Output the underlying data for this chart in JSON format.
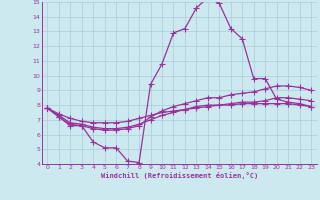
{
  "xlabel": "Windchill (Refroidissement éolien,°C)",
  "xlim": [
    -0.5,
    23.5
  ],
  "ylim": [
    4,
    15
  ],
  "yticks": [
    4,
    5,
    6,
    7,
    8,
    9,
    10,
    11,
    12,
    13,
    14,
    15
  ],
  "xticks": [
    0,
    1,
    2,
    3,
    4,
    5,
    6,
    7,
    8,
    9,
    10,
    11,
    12,
    13,
    14,
    15,
    16,
    17,
    18,
    19,
    20,
    21,
    22,
    23
  ],
  "bg_color": "#cce9f0",
  "grid_color": "#aacdd8",
  "line_color": "#993399",
  "line_width": 0.9,
  "marker": "+",
  "marker_size": 4,
  "series": {
    "line1": [
      7.8,
      7.2,
      6.6,
      6.6,
      5.5,
      5.1,
      5.1,
      4.2,
      4.1,
      9.4,
      10.8,
      12.9,
      13.2,
      14.6,
      15.3,
      14.9,
      13.2,
      12.5,
      9.8,
      9.8,
      8.4,
      8.2,
      8.1,
      7.9
    ],
    "line2": [
      7.8,
      7.4,
      7.1,
      6.9,
      6.8,
      6.8,
      6.8,
      6.9,
      7.1,
      7.3,
      7.5,
      7.6,
      7.7,
      7.8,
      7.9,
      8.0,
      8.0,
      8.1,
      8.1,
      8.1,
      8.1,
      8.1,
      8.0,
      7.9
    ],
    "line3": [
      7.8,
      7.3,
      6.8,
      6.7,
      6.5,
      6.4,
      6.4,
      6.5,
      6.7,
      7.0,
      7.3,
      7.5,
      7.7,
      7.9,
      8.0,
      8.0,
      8.1,
      8.2,
      8.2,
      8.3,
      8.5,
      8.5,
      8.4,
      8.3
    ],
    "line4": [
      7.8,
      7.2,
      6.7,
      6.6,
      6.4,
      6.3,
      6.3,
      6.4,
      6.6,
      7.2,
      7.6,
      7.9,
      8.1,
      8.3,
      8.5,
      8.5,
      8.7,
      8.8,
      8.9,
      9.1,
      9.3,
      9.3,
      9.2,
      9.0
    ]
  }
}
